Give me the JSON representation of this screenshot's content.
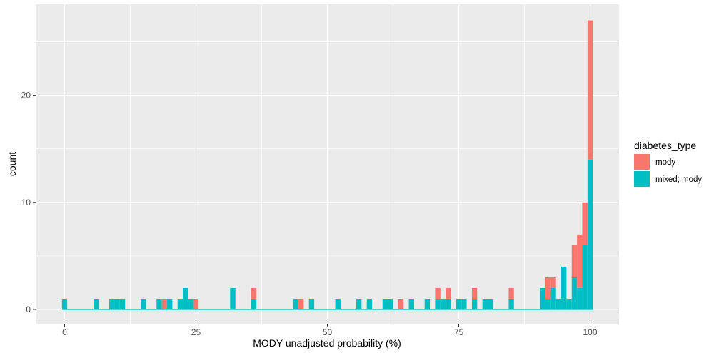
{
  "chart_data": {
    "type": "bar",
    "subtype": "stacked-histogram",
    "xlabel": "MODY unadjusted probability (%)",
    "ylabel": "count",
    "xlim": [
      -5.5,
      105.5
    ],
    "ylim": [
      -1.4,
      28.5
    ],
    "xticks": [
      0,
      25,
      50,
      75,
      100
    ],
    "xtick_labels": [
      "0",
      "25",
      "50",
      "75",
      "100"
    ],
    "yticks": [
      0,
      10,
      20
    ],
    "ytick_labels": [
      "0",
      "10",
      "20"
    ],
    "grid": true,
    "background": "#ebebeb",
    "bin_width": 1,
    "legend": {
      "title": "diabetes_type",
      "position": "right"
    },
    "series": [
      {
        "name": "mixed; mody",
        "color": "#00bfc4",
        "bins": [
          [
            0,
            1
          ],
          [
            6,
            1
          ],
          [
            9,
            1
          ],
          [
            10,
            1
          ],
          [
            11,
            1
          ],
          [
            15,
            1
          ],
          [
            18,
            1
          ],
          [
            20,
            1
          ],
          [
            22,
            1
          ],
          [
            23,
            2
          ],
          [
            24,
            1
          ],
          [
            32,
            2
          ],
          [
            36,
            1
          ],
          [
            44,
            1
          ],
          [
            47,
            1
          ],
          [
            52,
            1
          ],
          [
            56,
            1
          ],
          [
            58,
            1
          ],
          [
            61,
            1
          ],
          [
            62,
            1
          ],
          [
            66,
            1
          ],
          [
            69,
            1
          ],
          [
            71,
            1
          ],
          [
            72,
            1
          ],
          [
            73,
            1
          ],
          [
            75,
            1
          ],
          [
            76,
            1
          ],
          [
            78,
            1
          ],
          [
            80,
            1
          ],
          [
            81,
            1
          ],
          [
            85,
            1
          ],
          [
            91,
            2
          ],
          [
            92,
            1
          ],
          [
            93,
            2
          ],
          [
            94,
            1
          ],
          [
            95,
            4
          ],
          [
            96,
            1
          ],
          [
            97,
            3
          ],
          [
            98,
            2
          ],
          [
            99,
            6
          ],
          [
            100,
            14
          ]
        ]
      },
      {
        "name": "mody",
        "color": "#f8766d",
        "bins": [
          [
            19,
            1
          ],
          [
            25,
            1
          ],
          [
            36,
            1
          ],
          [
            45,
            1
          ],
          [
            64,
            1
          ],
          [
            71,
            1
          ],
          [
            73,
            1
          ],
          [
            78,
            1
          ],
          [
            85,
            1
          ],
          [
            92,
            2
          ],
          [
            93,
            1
          ],
          [
            97,
            3
          ],
          [
            98,
            5
          ],
          [
            99,
            4
          ],
          [
            100,
            13
          ]
        ]
      }
    ],
    "legend_order": [
      "mody",
      "mixed; mody"
    ]
  }
}
